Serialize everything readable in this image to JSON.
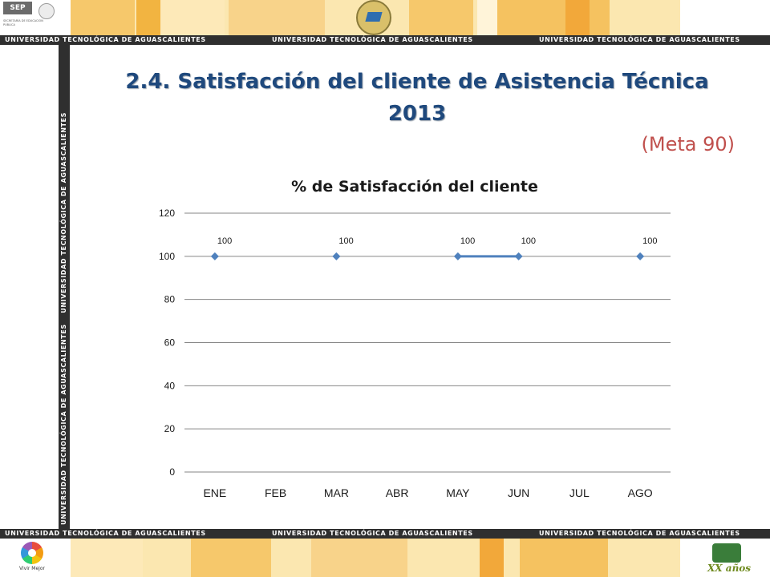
{
  "header": {
    "sep_logo_text": "SEP",
    "sep_subtitle": "SECRETARÍA DE EDUCACIÓN PÚBLICA",
    "stripe_text": "UNIVERSIDAD TECNOLÓGICA DE AGUASCALIENTES"
  },
  "footer": {
    "vivir_label": "Vivir Mejor",
    "anniversary_text": "XX años"
  },
  "slide": {
    "title_line1": "2.4. Satisfacción del cliente de Asistencia Técnica",
    "title_line2": "2013",
    "goal": "(Meta 90)"
  },
  "colors": {
    "banner": "#fbe7b0",
    "stripe": "#2f2f2f",
    "title": "#1f497d",
    "goal": "#c0504d",
    "series": "#4f81bd"
  },
  "chart_data": {
    "type": "line",
    "title": "% de Satisfacción del cliente",
    "categories": [
      "ENE",
      "FEB",
      "MAR",
      "ABR",
      "MAY",
      "JUN",
      "JUL",
      "AGO"
    ],
    "series": [
      {
        "values": [
          100,
          null,
          100,
          null,
          100,
          100,
          null,
          100
        ]
      }
    ],
    "data_labels": [
      "100",
      "",
      "100",
      "",
      "100",
      "100",
      "",
      "100"
    ],
    "ylim": [
      0,
      120
    ],
    "yticks": [
      0,
      20,
      40,
      60,
      80,
      100,
      120
    ],
    "grid": true,
    "legend": "none",
    "xlabel": "",
    "ylabel": ""
  }
}
